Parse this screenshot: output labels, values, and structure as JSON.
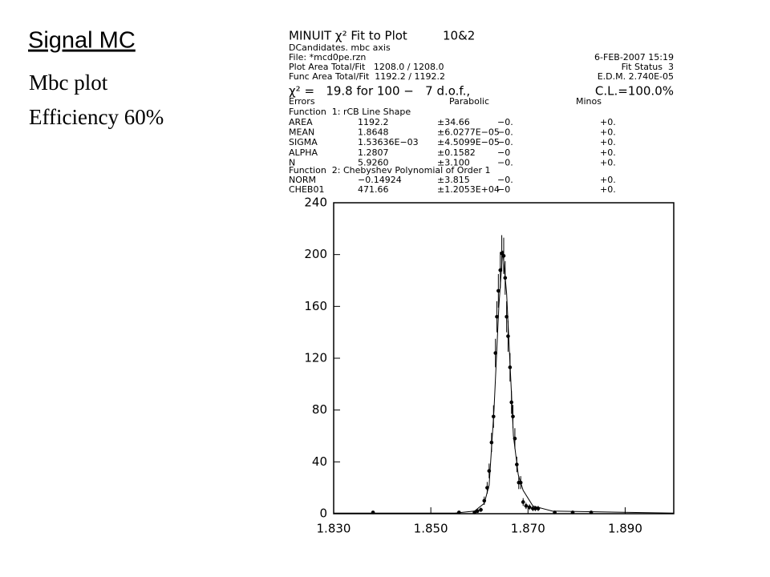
{
  "slide": {
    "title": "Signal MC",
    "lines": [
      "Mbc plot",
      "Efficiency 60%"
    ]
  },
  "fit_box": {
    "title": "MINUIT χ² Fit to Plot",
    "plot_id": "10&2",
    "histogram": "DCandidates. mbc axis",
    "file": "File: *mcd0pe.rzn",
    "date": "6-FEB-2007 15:19",
    "plot_area": "Plot Area Total/Fit   1208.0 / 1208.0",
    "fit_status": "Fit Status  3",
    "func_area": "Func Area Total/Fit  1192.2 / 1192.2",
    "edm": "E.D.M. 2.740E-05",
    "chi2": "χ² =   19.8 for 100 −   7 d.o.f.,",
    "cl": "C.L.=100.0%",
    "errors_header": [
      "Errors",
      "Parabolic",
      "Minos"
    ],
    "function1": "Function  1: rCB Line Shape",
    "params1": [
      [
        "AREA",
        "1192.2",
        "±34.66",
        "−0.",
        "+0."
      ],
      [
        "MEAN",
        "1.8648",
        "±6.0277E−05",
        "−0.",
        "+0."
      ],
      [
        "SIGMA",
        "1.53636E−03",
        "±4.5099E−05",
        "−0.",
        "+0."
      ],
      [
        "ALPHA",
        "1.2807",
        "±0.1582",
        "−0",
        "+0."
      ],
      [
        "N",
        "5.9260",
        "±3.100",
        "−0.",
        "+0."
      ]
    ],
    "function2": "Function  2: Chebyshev Polynomial of Order 1",
    "params2": [
      [
        "NORM",
        "−0.14924",
        "±3.815",
        "−0.",
        "+0."
      ],
      [
        "CHEB01",
        "471.66",
        "±1.2053E+04",
        "−0",
        "+0."
      ]
    ]
  },
  "chart_data": {
    "type": "scatter",
    "color": "#000000",
    "x": [
      1.8381,
      1.8558,
      1.859,
      1.8596,
      1.8603,
      1.861,
      1.8616,
      1.862,
      1.8625,
      1.8629,
      1.8633,
      1.8636,
      1.8639,
      1.8643,
      1.8646,
      1.865,
      1.8653,
      1.8656,
      1.8659,
      1.8663,
      1.8666,
      1.8669,
      1.8673,
      1.8677,
      1.8681,
      1.8685,
      1.869,
      1.8696,
      1.8703,
      1.871,
      1.8715,
      1.8721,
      1.8755,
      1.8792,
      1.883
    ],
    "values": [
      1,
      1,
      1,
      2,
      3,
      10,
      20,
      33,
      55,
      75,
      124,
      152,
      172,
      188,
      201,
      199,
      182,
      152,
      137,
      113,
      86,
      75,
      58,
      38,
      24,
      24,
      9,
      6,
      5,
      4,
      4,
      4,
      1,
      1,
      1
    ],
    "errors": [
      1,
      1,
      1,
      1.4,
      1.7,
      3.2,
      4.5,
      5.7,
      7.4,
      8.7,
      11,
      12,
      13,
      14,
      14,
      14,
      13,
      12,
      12,
      11,
      9,
      9,
      8,
      6,
      5,
      5,
      3,
      2.4,
      2.2,
      2,
      2,
      2,
      1,
      1,
      1
    ],
    "fit": {
      "x": [
        1.83,
        1.855,
        1.859,
        1.861,
        1.862,
        1.863,
        1.864,
        1.8648,
        1.8656,
        1.8665,
        1.867,
        1.868,
        1.869,
        1.871,
        1.875,
        1.9
      ],
      "values": [
        0.5,
        0.5,
        2,
        8,
        22,
        80,
        160,
        203,
        170,
        100,
        60,
        30,
        18,
        6,
        2,
        0.5
      ]
    },
    "xlim": [
      1.83,
      1.9
    ],
    "ylim": [
      0,
      240
    ],
    "xticks": [
      {
        "value": 1.83,
        "label": "1.830"
      },
      {
        "value": 1.85,
        "label": "1.850"
      },
      {
        "value": 1.87,
        "label": "1.870"
      },
      {
        "value": 1.89,
        "label": "1.890"
      }
    ],
    "yticks": [
      0,
      40,
      80,
      120,
      160,
      200,
      240
    ]
  }
}
